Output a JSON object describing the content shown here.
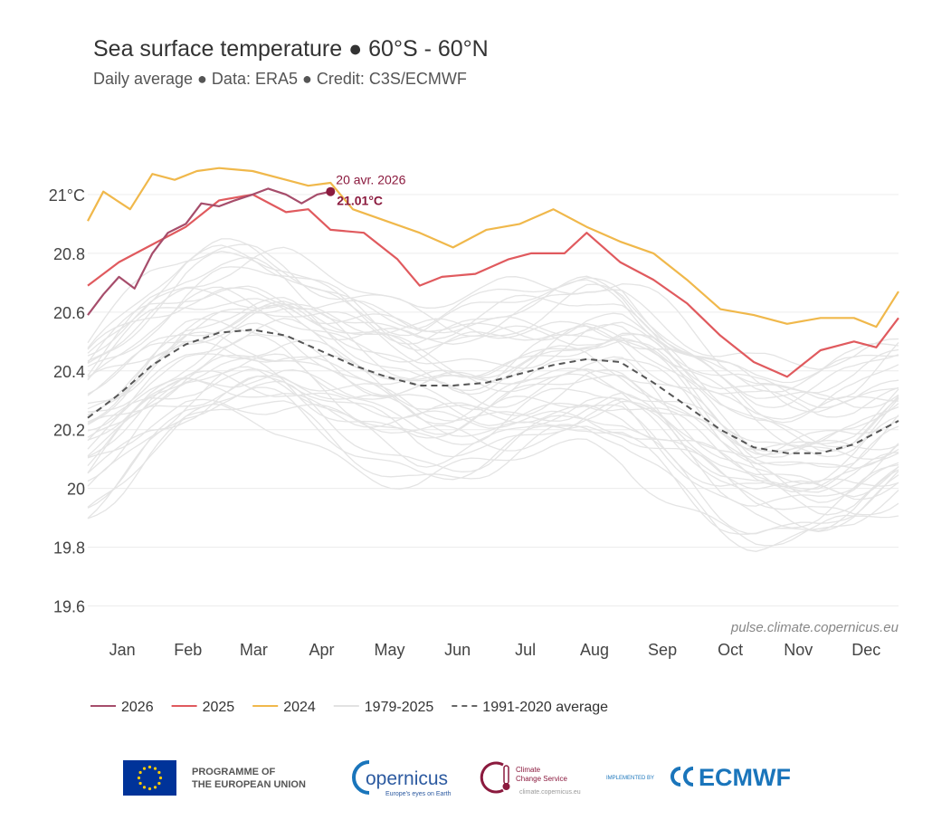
{
  "chart_data": {
    "type": "line",
    "title": "Sea surface temperature ● 60°S - 60°N",
    "subtitle": "Daily average ● Data: ERA5 ● Credit: C3S/ECMWF",
    "xlabel": "",
    "ylabel": "",
    "ylim": [
      19.5,
      21.25
    ],
    "xlim": [
      1,
      365
    ],
    "grid": true,
    "months": [
      "Jan",
      "Feb",
      "Mar",
      "Apr",
      "May",
      "Jun",
      "Jul",
      "Aug",
      "Sep",
      "Oct",
      "Nov",
      "Dec"
    ],
    "yticks": [
      {
        "value": 19.6,
        "label": "19.6"
      },
      {
        "value": 19.8,
        "label": "19.8"
      },
      {
        "value": 20.0,
        "label": "20"
      },
      {
        "value": 20.2,
        "label": "20.2"
      },
      {
        "value": 20.4,
        "label": "20.4"
      },
      {
        "value": 20.6,
        "label": "20.6"
      },
      {
        "value": 20.8,
        "label": "20.8"
      },
      {
        "value": 21.0,
        "label": "21°C"
      }
    ],
    "series": [
      {
        "name": "2026",
        "color": "#a64d6b",
        "style": "solid",
        "x": [
          1,
          8,
          15,
          22,
          30,
          37,
          45,
          52,
          60,
          67,
          75,
          82,
          90,
          97,
          104,
          110
        ],
        "y": [
          20.59,
          20.66,
          20.72,
          20.68,
          20.8,
          20.87,
          20.9,
          20.97,
          20.96,
          20.98,
          21.0,
          21.02,
          21.0,
          20.97,
          21.0,
          21.01
        ]
      },
      {
        "name": "2025",
        "color": "#e05a5e",
        "style": "solid",
        "x": [
          1,
          15,
          30,
          45,
          60,
          75,
          90,
          100,
          110,
          125,
          140,
          150,
          160,
          175,
          190,
          200,
          215,
          225,
          240,
          255,
          270,
          285,
          300,
          315,
          330,
          345,
          355,
          365
        ],
        "y": [
          20.69,
          20.77,
          20.83,
          20.89,
          20.98,
          21.0,
          20.94,
          20.95,
          20.88,
          20.87,
          20.78,
          20.69,
          20.72,
          20.73,
          20.78,
          20.8,
          20.8,
          20.87,
          20.77,
          20.71,
          20.63,
          20.52,
          20.43,
          20.38,
          20.47,
          20.5,
          20.48,
          20.58
        ]
      },
      {
        "name": "2024",
        "color": "#f0b84b",
        "style": "solid",
        "x": [
          1,
          8,
          20,
          30,
          40,
          50,
          60,
          75,
          90,
          100,
          110,
          120,
          135,
          150,
          165,
          180,
          195,
          210,
          225,
          240,
          255,
          270,
          285,
          300,
          315,
          330,
          345,
          355,
          365
        ],
        "y": [
          20.91,
          21.01,
          20.95,
          21.07,
          21.05,
          21.08,
          21.09,
          21.08,
          21.05,
          21.03,
          21.04,
          20.95,
          20.91,
          20.87,
          20.82,
          20.88,
          20.9,
          20.95,
          20.89,
          20.84,
          20.8,
          20.71,
          20.61,
          20.59,
          20.56,
          20.58,
          20.58,
          20.55,
          20.67
        ]
      },
      {
        "name": "1991-2020 average",
        "color": "#555555",
        "style": "dashed",
        "x": [
          1,
          15,
          30,
          45,
          60,
          75,
          90,
          105,
          120,
          135,
          150,
          165,
          180,
          195,
          210,
          225,
          240,
          255,
          270,
          285,
          300,
          315,
          330,
          345,
          365
        ],
        "y": [
          20.24,
          20.32,
          20.42,
          20.49,
          20.53,
          20.54,
          20.52,
          20.47,
          20.42,
          20.38,
          20.35,
          20.35,
          20.36,
          20.39,
          20.42,
          20.44,
          20.43,
          20.36,
          20.28,
          20.2,
          20.14,
          20.12,
          20.12,
          20.15,
          20.23
        ]
      }
    ],
    "background_series_label": "1979-2025",
    "annotation": {
      "date": "20 avr. 2026",
      "value": "21.01°C",
      "x": 110,
      "y": 21.01
    },
    "source_note": "pulse.climate.copernicus.eu"
  },
  "legend": [
    {
      "label": "2026",
      "color": "#a64d6b",
      "style": "solid"
    },
    {
      "label": "2025",
      "color": "#e05a5e",
      "style": "solid"
    },
    {
      "label": "2024",
      "color": "#f0b84b",
      "style": "solid"
    },
    {
      "label": "1979-2025",
      "color": "#e2e2e2",
      "style": "solid"
    },
    {
      "label": "1991-2020 average",
      "color": "#666666",
      "style": "dashed"
    }
  ],
  "footer": {
    "eu_line1": "PROGRAMME OF",
    "eu_line2": "THE EUROPEAN UNION",
    "copernicus": "opernicus",
    "copernicus_tag": "Europe's eyes on Earth",
    "c3s_line1": "Climate",
    "c3s_line2": "Change Service",
    "c3s_url": "climate.copernicus.eu",
    "implemented_by": "IMPLEMENTED BY",
    "ecmwf": "ECMWF"
  }
}
